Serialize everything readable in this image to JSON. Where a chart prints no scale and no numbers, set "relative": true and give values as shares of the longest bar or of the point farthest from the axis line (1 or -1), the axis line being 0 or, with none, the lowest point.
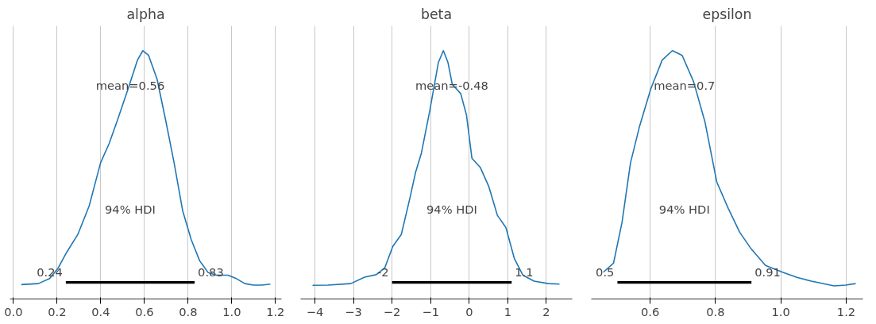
{
  "chart_data": [
    {
      "type": "line",
      "title": "alpha",
      "relative": true,
      "grid": "x",
      "xlim": [
        -0.016,
        1.228
      ],
      "xticks": [
        {
          "value": 0,
          "label": "0.0"
        },
        0.2,
        0.4,
        0.6,
        0.8,
        {
          "value": 1,
          "label": "1.0"
        },
        1.2
      ],
      "series": [
        {
          "color": "#1f77b4",
          "x": [
            0.036,
            0.114,
            0.166,
            0.205,
            0.244,
            0.295,
            0.347,
            0.399,
            0.438,
            0.477,
            0.529,
            0.568,
            0.593,
            0.619,
            0.658,
            0.697,
            0.736,
            0.775,
            0.814,
            0.853,
            0.892,
            0.93,
            0.982,
            1.021,
            1.06,
            1.099,
            1.138,
            1.177
          ],
          "values": [
            0.058,
            0.062,
            0.082,
            0.125,
            0.188,
            0.26,
            0.375,
            0.548,
            0.625,
            0.721,
            0.856,
            0.962,
            1,
            0.981,
            0.885,
            0.721,
            0.548,
            0.356,
            0.24,
            0.154,
            0.106,
            0.096,
            0.096,
            0.082,
            0.062,
            0.056,
            0.056,
            0.06
          ]
        },
        {
          "color": "#000000",
          "x": [
            0.24,
            0.83
          ],
          "values": [
            0.067,
            0.067
          ]
        }
      ],
      "annotations": [
        "mean=0.56",
        "94% HDI",
        {
          "text": "0.24",
          "x": 0.24,
          "y": 0.067
        },
        {
          "text": "0.83",
          "x": 0.83,
          "y": 0.067
        }
      ]
    },
    {
      "type": "line",
      "title": "beta",
      "relative": true,
      "grid": "x",
      "xlim": [
        -4.37,
        2.67
      ],
      "xticks": [
        {
          "value": -4,
          "label": "−4"
        },
        {
          "value": -3,
          "label": "−3"
        },
        {
          "value": -2,
          "label": "−2"
        },
        {
          "value": -1,
          "label": "−1"
        },
        0,
        1,
        2
      ],
      "series": [
        {
          "color": "#1f77b4",
          "x": [
            -4.06,
            -3.66,
            -3.07,
            -2.71,
            -2.41,
            -2.19,
            -1.98,
            -1.76,
            -1.54,
            -1.39,
            -1.24,
            -1.02,
            -0.8,
            -0.67,
            -0.55,
            -0.44,
            -0.22,
            -0.07,
            0.07,
            0.29,
            0.51,
            0.73,
            0.95,
            1.17,
            1.39,
            1.68,
            2.05,
            2.34
          ],
          "values": [
            0.055,
            0.056,
            0.062,
            0.088,
            0.098,
            0.125,
            0.212,
            0.26,
            0.404,
            0.51,
            0.587,
            0.76,
            0.952,
            1,
            0.952,
            0.865,
            0.827,
            0.74,
            0.567,
            0.529,
            0.452,
            0.337,
            0.288,
            0.163,
            0.096,
            0.072,
            0.062,
            0.06
          ]
        },
        {
          "color": "#000000",
          "x": [
            -2,
            1.1
          ],
          "values": [
            0.067,
            0.067
          ]
        }
      ],
      "annotations": [
        "mean=-0.48",
        "94% HDI",
        {
          "text": "-2",
          "x": -2,
          "y": 0.067
        },
        {
          "text": "1.1",
          "x": 1.1,
          "y": 0.067
        }
      ]
    },
    {
      "type": "line",
      "title": "epsilon",
      "relative": true,
      "grid": "x",
      "xlim": [
        0.42,
        1.251
      ],
      "xticks": [
        0.6,
        0.8,
        {
          "value": 1,
          "label": "1.0"
        },
        1.2
      ],
      "series": [
        {
          "color": "#1f77b4",
          "x": [
            0.457,
            0.488,
            0.514,
            0.54,
            0.567,
            0.602,
            0.637,
            0.668,
            0.698,
            0.733,
            0.768,
            0.804,
            0.839,
            0.874,
            0.909,
            0.953,
            1.005,
            1.049,
            1.093,
            1.163,
            1.198,
            1.229
          ],
          "values": [
            0.108,
            0.144,
            0.308,
            0.548,
            0.692,
            0.846,
            0.962,
            1,
            0.981,
            0.875,
            0.712,
            0.471,
            0.365,
            0.269,
            0.202,
            0.135,
            0.108,
            0.087,
            0.072,
            0.053,
            0.056,
            0.062
          ]
        },
        {
          "color": "#000000",
          "x": [
            0.5,
            0.91
          ],
          "values": [
            0.067,
            0.067
          ]
        }
      ],
      "annotations": [
        "mean=0.7",
        "94% HDI",
        {
          "text": "0.5",
          "x": 0.5,
          "y": 0.067
        },
        {
          "text": "0.91",
          "x": 0.91,
          "y": 0.067
        }
      ]
    }
  ]
}
